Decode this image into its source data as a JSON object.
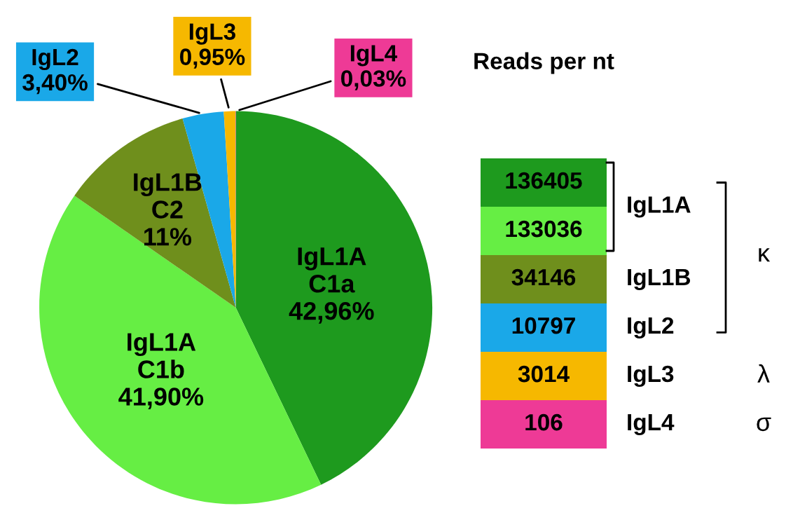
{
  "chart_data": [
    {
      "type": "pie",
      "categories": [
        "IgL1A\nC1a",
        "IgL1A\nC1b",
        "IgL1B\nC2",
        "IgL2",
        "IgL3",
        "IgL4"
      ],
      "values": [
        42.96,
        41.9,
        11,
        3.4,
        0.95,
        0.03
      ],
      "value_labels": [
        "42,96%",
        "41,90%",
        "11%",
        "3,40%",
        "0,95%",
        "0,03%"
      ],
      "colors": [
        "#1e9a1e",
        "#66ee44",
        "#6f8f1c",
        "#1aa8e8",
        "#f6b800",
        "#ee3a96"
      ]
    },
    {
      "type": "other",
      "title": "Reads per nt",
      "values": [
        136405,
        133036,
        34146,
        10797,
        3014,
        106
      ],
      "data_labels": true,
      "colors": [
        "#1e9a1e",
        "#66ee44",
        "#6f8f1c",
        "#1aa8e8",
        "#f6b800",
        "#ee3a96"
      ],
      "annotations": [
        "IgL1A",
        "IgL1B",
        "IgL2",
        "IgL3",
        "IgL4",
        "κ",
        "λ",
        "σ"
      ]
    }
  ]
}
